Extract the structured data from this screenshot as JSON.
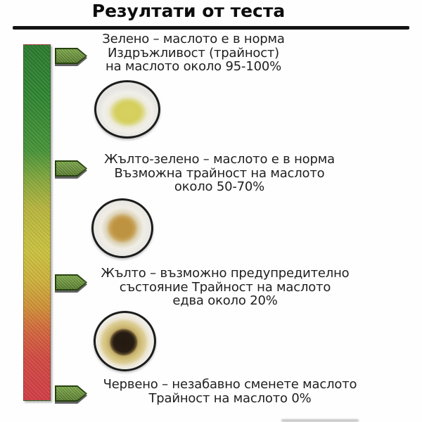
{
  "title": "Резултати от теста",
  "levels": [
    {
      "name": "green",
      "lines": [
        "Зелено – маслото е в норма",
        "Издръжливост (трайност)",
        "на маслото около 95-100%"
      ]
    },
    {
      "name": "yellow-green",
      "lines": [
        "Жълто-зелено – маслото е в норма",
        "Възможна трайност на маслото",
        "около 50-70%"
      ]
    },
    {
      "name": "yellow",
      "lines": [
        "Жълто – възможно предупредително",
        "състояние Трайност на маслото",
        "едва около 20%"
      ]
    },
    {
      "name": "red",
      "lines": [
        "Червено – незабавно сменете маслото",
        "Трайност на маслото 0%"
      ]
    }
  ],
  "scale": {
    "description": "vertical-oil-condition-gradient",
    "gradient_stops": [
      "#2a7a2e",
      "#489338",
      "#b7b43d",
      "#c9c23e",
      "#cf8f37",
      "#d2683c",
      "#d13c45"
    ],
    "arrow_icon": "right-pointing-level-arrow",
    "arrow_color": "#678e38"
  },
  "samples": [
    {
      "name": "oil-spot-green-sample",
      "center_color": "#d5cf5e",
      "ring_color": "#f1efe9"
    },
    {
      "name": "oil-spot-yellow-green-sample",
      "center_color": "#bd9240",
      "ring_color": "#efede5"
    },
    {
      "name": "oil-spot-yellow-sample",
      "center_color": "#271c11",
      "ring_color": "#d3c17e"
    }
  ]
}
